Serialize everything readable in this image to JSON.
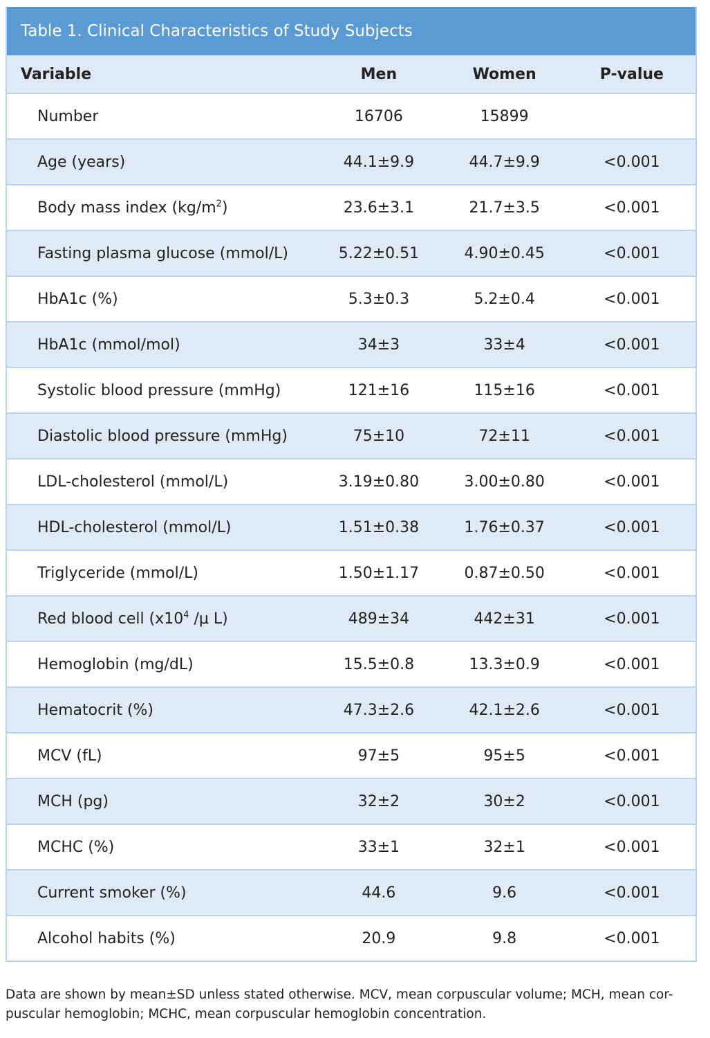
{
  "table": {
    "title": "Table 1. Clinical Characteristics of Study Subjects",
    "headers": {
      "variable": "Variable",
      "men": "Men",
      "women": "Women",
      "p": "P-value"
    },
    "rows": [
      {
        "variable": "Number",
        "men": "16706",
        "women": "15899",
        "p": ""
      },
      {
        "variable": "Age (years)",
        "men": "44.1±9.9",
        "women": "44.7±9.9",
        "p": "<0.001"
      },
      {
        "variable": "Body mass index (kg/m",
        "variable_sup": "2",
        "variable_tail": ")",
        "men": "23.6±3.1",
        "women": "21.7±3.5",
        "p": "<0.001"
      },
      {
        "variable": "Fasting plasma glucose (mmol/L)",
        "men": "5.22±0.51",
        "women": "4.90±0.45",
        "p": "<0.001"
      },
      {
        "variable": "HbA1c (%)",
        "men": "5.3±0.3",
        "women": "5.2±0.4",
        "p": "<0.001"
      },
      {
        "variable": "HbA1c (mmol/mol)",
        "men": "34±3",
        "women": "33±4",
        "p": "<0.001"
      },
      {
        "variable": "Systolic blood pressure (mmHg)",
        "men": "121±16",
        "women": "115±16",
        "p": "<0.001"
      },
      {
        "variable": "Diastolic blood pressure (mmHg)",
        "men": "75±10",
        "women": "72±11",
        "p": "<0.001"
      },
      {
        "variable": "LDL-cholesterol (mmol/L)",
        "men": "3.19±0.80",
        "women": "3.00±0.80",
        "p": "<0.001"
      },
      {
        "variable": "HDL-cholesterol (mmol/L)",
        "men": "1.51±0.38",
        "women": "1.76±0.37",
        "p": "<0.001"
      },
      {
        "variable": "Triglyceride (mmol/L)",
        "men": "1.50±1.17",
        "women": "0.87±0.50",
        "p": "<0.001"
      },
      {
        "variable": "Red blood cell (x10",
        "variable_sup": "4",
        "variable_tail": " /μ L)",
        "men": "489±34",
        "women": "442±31",
        "p": "<0.001"
      },
      {
        "variable": "Hemoglobin (mg/dL)",
        "men": "15.5±0.8",
        "women": "13.3±0.9",
        "p": "<0.001"
      },
      {
        "variable": "Hematocrit (%)",
        "men": "47.3±2.6",
        "women": "42.1±2.6",
        "p": "<0.001"
      },
      {
        "variable": "MCV (fL)",
        "men": "97±5",
        "women": "95±5",
        "p": "<0.001"
      },
      {
        "variable": "MCH (pg)",
        "men": "32±2",
        "women": "30±2",
        "p": "<0.001"
      },
      {
        "variable": "MCHC (%)",
        "men": "33±1",
        "women": "32±1",
        "p": "<0.001"
      },
      {
        "variable": "Current smoker (%)",
        "men": "44.6",
        "women": "9.6",
        "p": "<0.001"
      },
      {
        "variable": "Alcohol habits (%)",
        "men": "20.9",
        "women": "9.8",
        "p": "<0.001"
      }
    ],
    "footnote_line1": "Data are shown by mean±SD unless stated otherwise. MCV, mean corpuscular volume; MCH, mean cor-",
    "footnote_line2": "puscular hemoglobin; MCHC, mean corpuscular hemoglobin concentration."
  },
  "colors": {
    "title_bg": "#5b9bd5",
    "alt_row_bg": "#deebf7",
    "border": "#b9d3ee"
  }
}
